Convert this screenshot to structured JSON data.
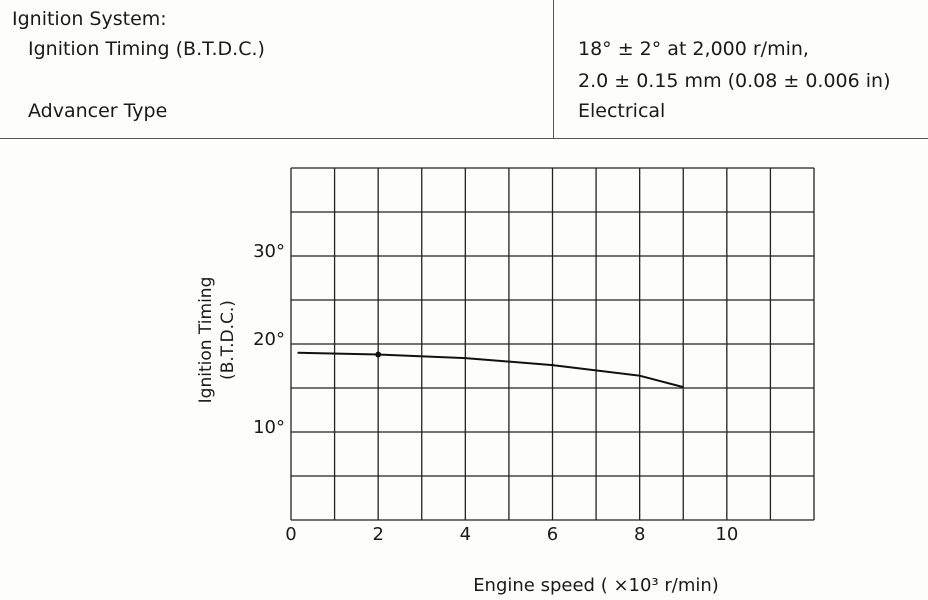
{
  "table": {
    "section": "Ignition System:",
    "rows": [
      [
        "Ignition Timing (B.T.D.C.)",
        [
          "18° ± 2° at 2,000 r/min,",
          "2.0 ± 0.15 mm (0.08 ± 0.006 in)"
        ]
      ],
      [
        "Advancer Type",
        [
          "Electrical"
        ]
      ]
    ]
  },
  "chart_data": {
    "type": "line",
    "y_label": [
      "Ignition Timing",
      "(B.T.D.C.)"
    ],
    "x_label": "Engine speed ( ×10³ r/min)",
    "series": [
      {
        "color": "#111111",
        "x": [
          0.15,
          2,
          4,
          6,
          8,
          9
        ],
        "values": [
          19,
          18.8,
          18.4,
          17.6,
          16.4,
          15.1
        ],
        "markers": [
          false,
          true,
          false,
          false,
          false,
          false
        ]
      }
    ],
    "xlim": [
      0,
      12
    ],
    "ylim": [
      0,
      40
    ],
    "xticks": [
      0,
      2,
      4,
      6,
      8,
      10
    ],
    "yticks": [
      {
        "value": 10,
        "label": "10°"
      },
      {
        "value": 20,
        "label": "20°"
      },
      {
        "value": 30,
        "label": "30°"
      }
    ],
    "xgrid": [
      0,
      1,
      2,
      3,
      4,
      5,
      6,
      7,
      8,
      9,
      10,
      11,
      12
    ],
    "ygrid": [
      0,
      5,
      10,
      15,
      20,
      25,
      30,
      35,
      40
    ],
    "grid": true
  }
}
